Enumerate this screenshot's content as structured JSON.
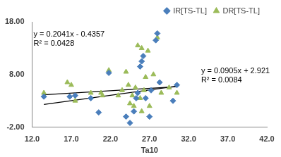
{
  "chart_data": {
    "type": "scatter",
    "x_label": "Ta10",
    "xlim": [
      12,
      42
    ],
    "xticks": [
      {
        "value": 12,
        "label": "12.0"
      },
      {
        "value": 17,
        "label": "17.0"
      },
      {
        "value": 22,
        "label": "22.0"
      },
      {
        "value": 27,
        "label": "27.0"
      },
      {
        "value": 32,
        "label": "32.0"
      },
      {
        "value": 37,
        "label": "37.0"
      },
      {
        "value": 42,
        "label": "42.0"
      }
    ],
    "ylim": [
      -2,
      18
    ],
    "yticks": [
      {
        "value": -2,
        "label": "-2.00"
      },
      {
        "value": 8,
        "label": "8.00"
      },
      {
        "value": 18,
        "label": "18.00"
      }
    ],
    "grid": false,
    "legend": "top right",
    "series": [
      {
        "name": "IR[TS-TL]",
        "color": "#4a7ebb",
        "marker": "diamond",
        "x": [
          13.5,
          16.8,
          17.5,
          19.5,
          20.5,
          21.8,
          24.0,
          24.5,
          25.0,
          25.3,
          25.5,
          25.8,
          26.0,
          26.2,
          26.5,
          27.0,
          27.2,
          27.8,
          28.0,
          28.3,
          30.0,
          30.5
        ],
        "values": [
          3.8,
          3.8,
          4.0,
          3.5,
          0.8,
          8.3,
          0.0,
          -1.2,
          1.0,
          3.5,
          4.5,
          9.5,
          10.5,
          11.5,
          3.5,
          0.0,
          5.0,
          14.5,
          15.8,
          6.5,
          3.0,
          6.0
        ]
      },
      {
        "name": "DR[TS-TL]",
        "color": "#9bbb59",
        "marker": "triangle",
        "x": [
          13.5,
          16.5,
          17.0,
          17.5,
          19.5,
          20.8,
          21.0,
          21.8,
          23.0,
          23.5,
          24.0,
          24.3,
          24.5,
          24.8,
          25.0,
          25.2,
          25.5,
          25.8,
          26.0,
          26.0,
          26.3,
          26.5,
          26.8,
          27.0,
          27.5,
          28.0,
          28.5,
          29.5,
          30.5
        ],
        "values": [
          4.5,
          6.5,
          6.0,
          3.0,
          4.5,
          4.5,
          4.0,
          8.8,
          4.0,
          5.0,
          8.5,
          6.0,
          2.5,
          4.0,
          2.0,
          5.5,
          13.5,
          3.5,
          13.0,
          1.0,
          5.0,
          7.5,
          12.5,
          2.0,
          8.0,
          15.0,
          4.5,
          5.5,
          4.5
        ]
      }
    ],
    "trendlines": [
      {
        "color": "#000000",
        "x": [
          13.5,
          30.5
        ],
        "values": [
          2.32,
          5.79
        ]
      },
      {
        "color": "#000000",
        "x": [
          13.5,
          30.5
        ],
        "values": [
          4.14,
          5.68
        ]
      }
    ],
    "annotations": [
      "y = 0.2041x - 0.4357",
      "R² = 0.0428",
      "y = 0.0905x + 2.921",
      "R² = 0.0084"
    ]
  }
}
